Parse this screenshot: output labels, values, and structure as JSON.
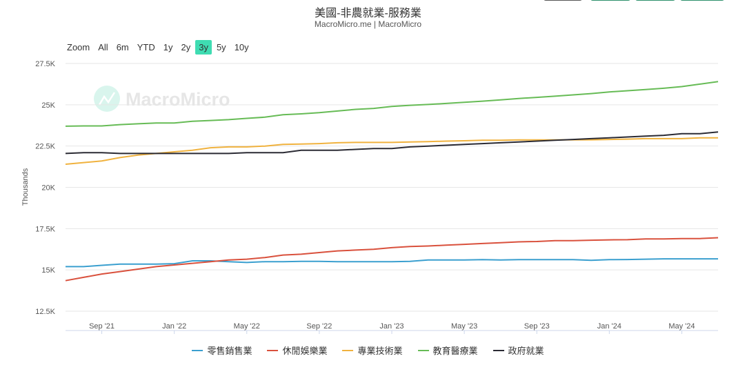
{
  "header": {
    "title": "美國-非農就業-服務業",
    "subtitle": "MacroMicro.me | MacroMicro",
    "watermark": "MacroMicro"
  },
  "range_selector": {
    "label": "Zoom",
    "options": [
      "All",
      "6m",
      "YTD",
      "1y",
      "2y",
      "3y",
      "5y",
      "10y"
    ],
    "selected": "3y",
    "accent": "#3fdcb2"
  },
  "chart_data": {
    "type": "line",
    "title": "美國-非農就業-服務業",
    "ylabel": "Thousands",
    "ylim": [
      12500,
      27500
    ],
    "yticks": [
      "12.5K",
      "15K",
      "17.5K",
      "20K",
      "22.5K",
      "25K",
      "27.5K"
    ],
    "ytick_values": [
      12500,
      15000,
      17500,
      20000,
      22500,
      25000,
      27500
    ],
    "xticks": [
      "Sep '21",
      "Jan '22",
      "May '22",
      "Sep '22",
      "Jan '23",
      "May '23",
      "Sep '23",
      "Jan '24",
      "May '24"
    ],
    "xtick_months": [
      "2021-09",
      "2022-01",
      "2022-05",
      "2022-09",
      "2023-01",
      "2023-05",
      "2023-09",
      "2024-01",
      "2024-05"
    ],
    "x_start": "2021-07",
    "x_end": "2024-07",
    "grid": true,
    "legend": "bottom",
    "series": [
      {
        "name": "零售銷售業",
        "color": "#3a9fcf",
        "values": [
          15200,
          15200,
          15280,
          15350,
          15350,
          15350,
          15380,
          15550,
          15550,
          15500,
          15450,
          15500,
          15500,
          15520,
          15520,
          15500,
          15500,
          15500,
          15500,
          15520,
          15600,
          15600,
          15600,
          15620,
          15600,
          15620,
          15620,
          15620,
          15620,
          15580,
          15620,
          15630,
          15650,
          15670,
          15670,
          15670,
          15670
        ]
      },
      {
        "name": "休閒娛樂業",
        "color": "#d9503c",
        "values": [
          14350,
          14550,
          14750,
          14900,
          15050,
          15200,
          15300,
          15400,
          15500,
          15600,
          15650,
          15750,
          15900,
          15950,
          16050,
          16150,
          16200,
          16250,
          16350,
          16420,
          16450,
          16500,
          16550,
          16600,
          16650,
          16700,
          16720,
          16770,
          16770,
          16800,
          16820,
          16830,
          16880,
          16880,
          16900,
          16900,
          16950
        ]
      },
      {
        "name": "專業技術業",
        "color": "#f0b23e",
        "values": [
          21400,
          21500,
          21600,
          21800,
          21950,
          22050,
          22150,
          22250,
          22400,
          22450,
          22450,
          22500,
          22600,
          22620,
          22650,
          22700,
          22720,
          22720,
          22720,
          22750,
          22770,
          22800,
          22820,
          22850,
          22850,
          22870,
          22870,
          22870,
          22880,
          22880,
          22900,
          22920,
          22950,
          22950,
          22950,
          23000,
          23000
        ]
      },
      {
        "name": "教育醫療業",
        "color": "#66bb55",
        "values": [
          23700,
          23720,
          23720,
          23800,
          23850,
          23900,
          23900,
          24000,
          24050,
          24100,
          24180,
          24250,
          24400,
          24450,
          24520,
          24620,
          24720,
          24780,
          24900,
          24970,
          25020,
          25080,
          25150,
          25220,
          25300,
          25380,
          25450,
          25520,
          25600,
          25680,
          25780,
          25850,
          25920,
          26000,
          26100,
          26250,
          26400
        ]
      },
      {
        "name": "政府就業",
        "color": "#2a2a33",
        "values": [
          22050,
          22100,
          22100,
          22050,
          22050,
          22050,
          22050,
          22050,
          22050,
          22050,
          22100,
          22100,
          22100,
          22250,
          22250,
          22250,
          22300,
          22350,
          22350,
          22450,
          22500,
          22550,
          22600,
          22650,
          22700,
          22750,
          22800,
          22850,
          22900,
          22950,
          23000,
          23050,
          23100,
          23150,
          23250,
          23250,
          23350
        ]
      }
    ]
  }
}
